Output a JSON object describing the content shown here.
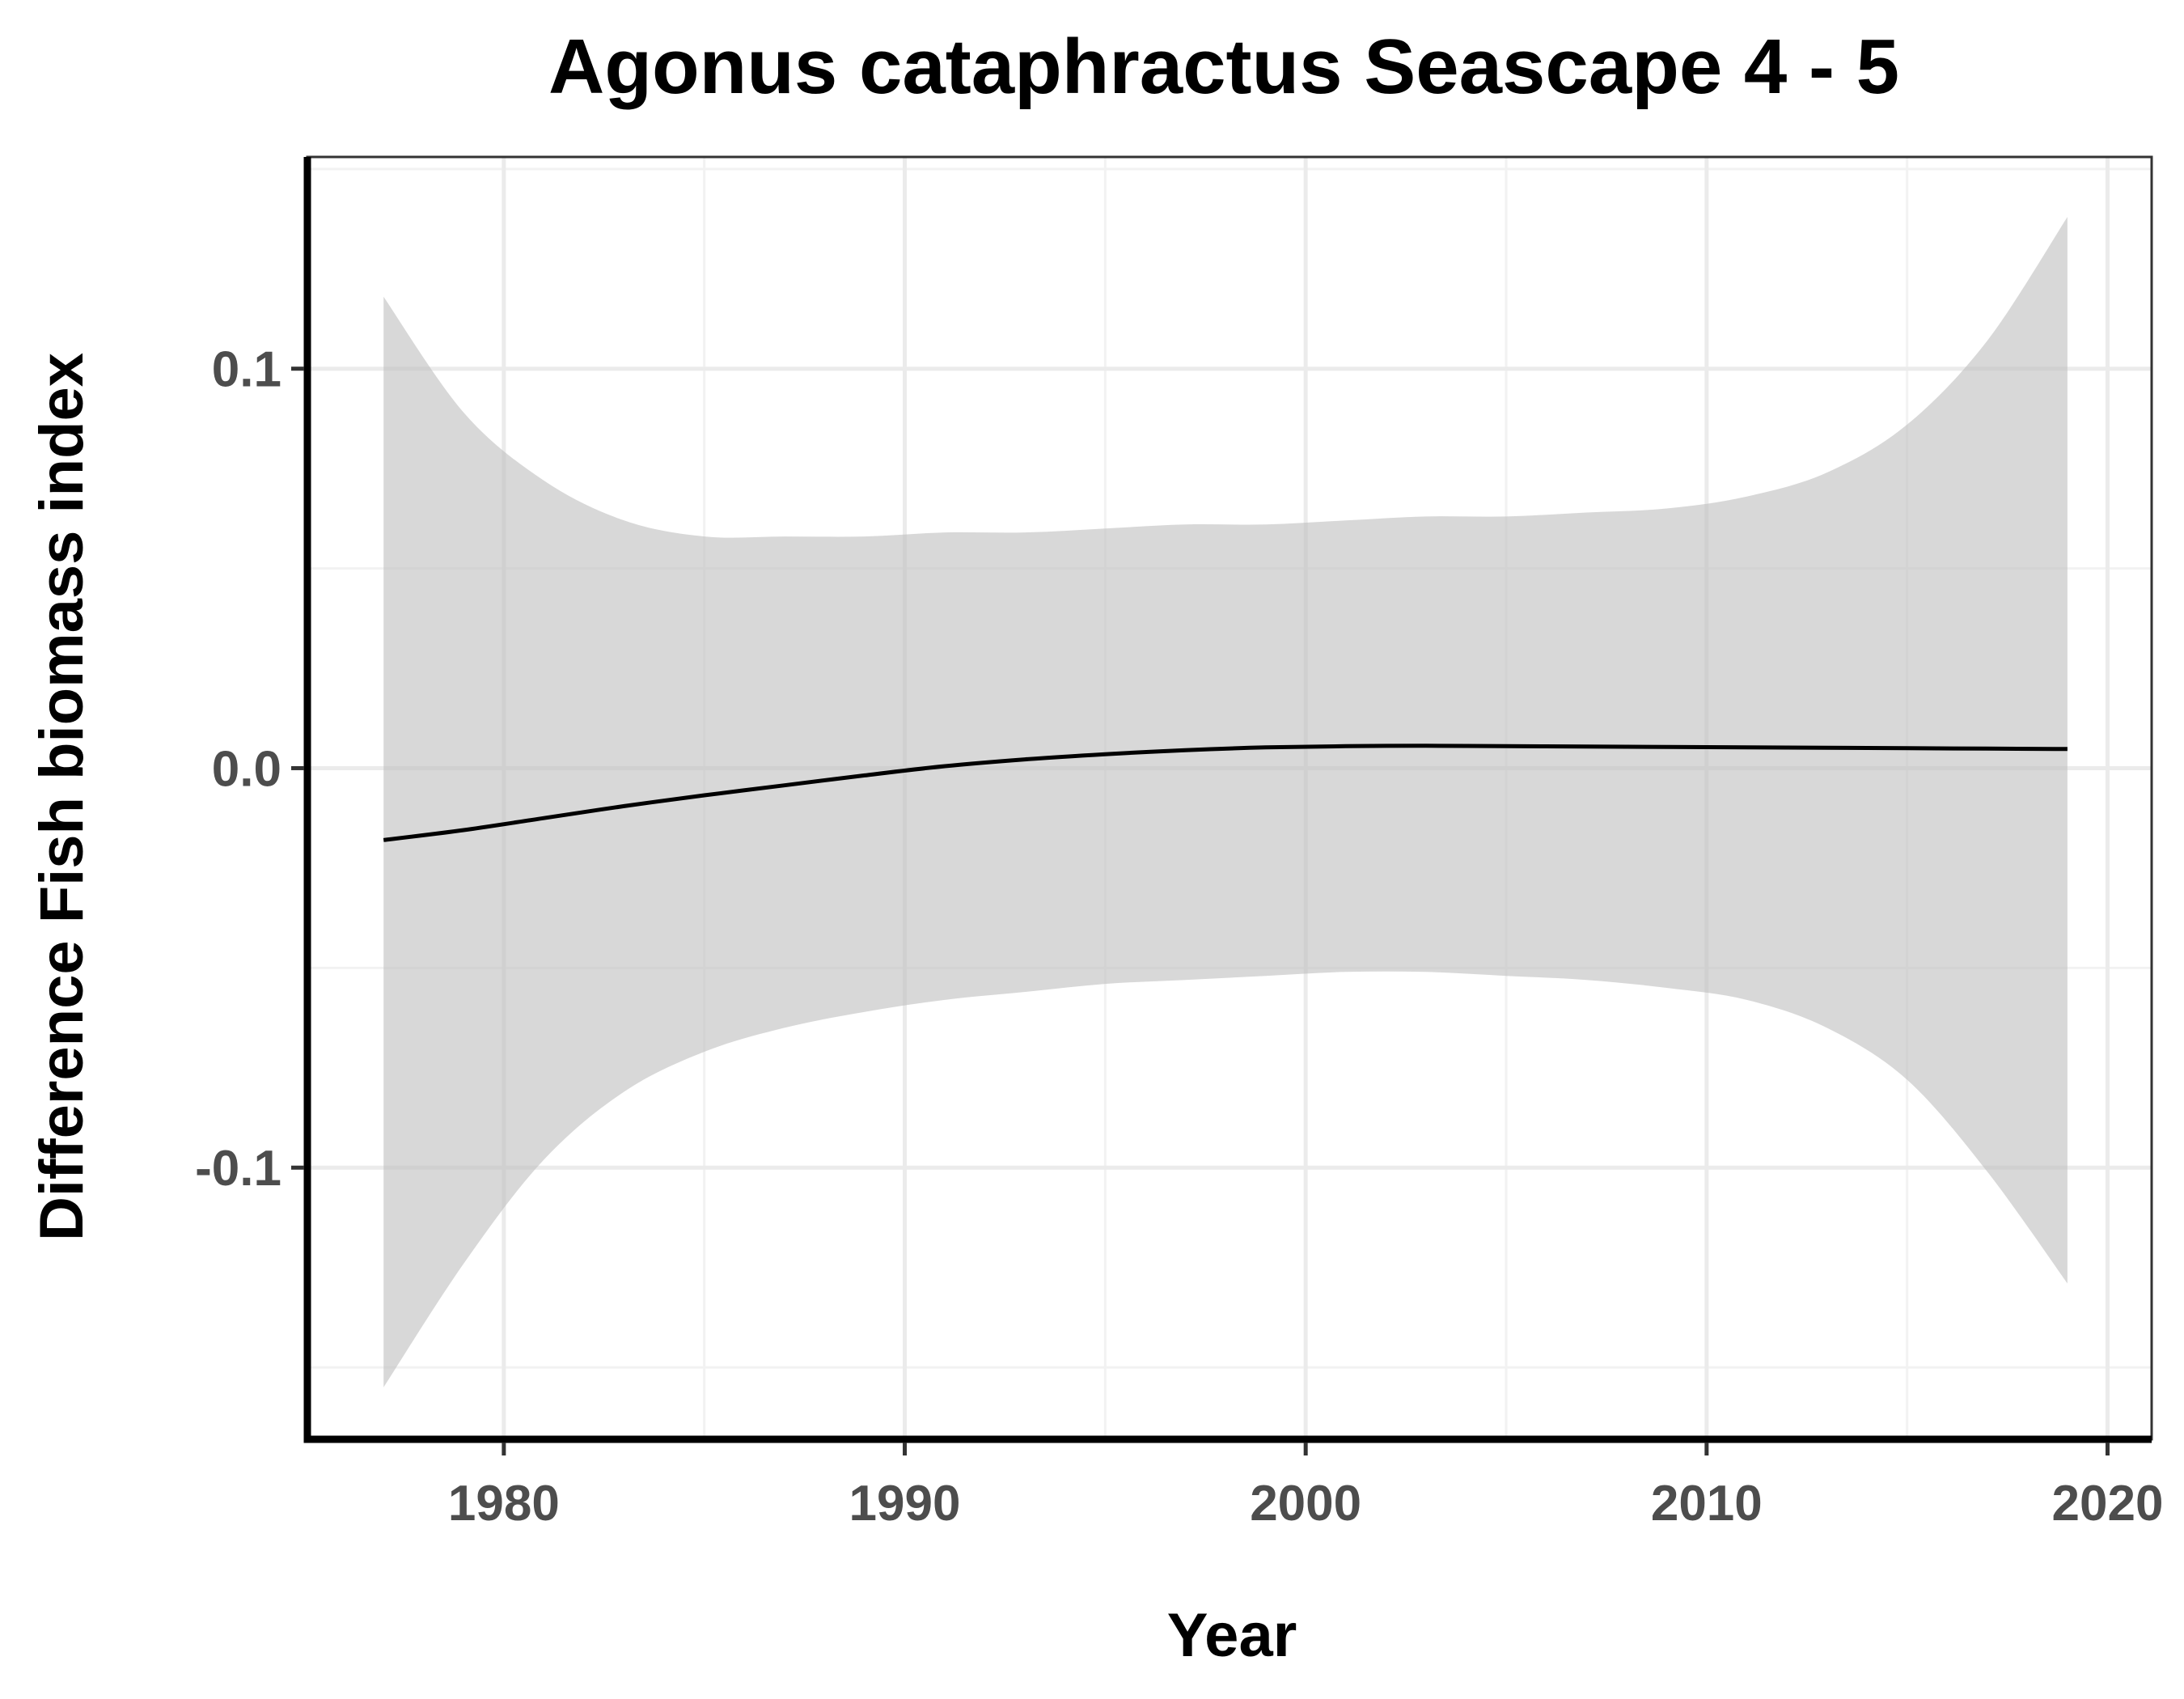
{
  "chart_data": {
    "type": "line",
    "title": "Agonus cataphractus Seascape 4 - 5",
    "xlabel": "Year",
    "ylabel": "Difference Fish biomass index",
    "xlim": [
      1975.1,
      2021.1
    ],
    "ylim": [
      -0.168,
      0.153
    ],
    "x_ticks": [
      1980,
      1990,
      2000,
      2010,
      2020
    ],
    "x_tick_labels": [
      "1980",
      "1990",
      "2000",
      "2010",
      "2020"
    ],
    "y_ticks": [
      -0.1,
      0.0,
      0.1
    ],
    "y_tick_labels": [
      "-0.1",
      "0.0",
      "0.1"
    ],
    "grid": true,
    "legend": "none",
    "colors": {
      "line": "#000000",
      "ribbon": "#bebebe"
    },
    "series": [
      {
        "x": [
          1977,
          1979,
          1981,
          1983,
          1985,
          1987,
          1989,
          1991,
          1993,
          1995,
          1997,
          1999,
          2001,
          2003,
          2005,
          2007,
          2009,
          2011,
          2013,
          2015,
          2017,
          2019
        ],
        "y": [
          -0.018,
          -0.0155,
          -0.0125,
          -0.0095,
          -0.0068,
          -0.0043,
          -0.0018,
          0.0005,
          0.0022,
          0.0035,
          0.0045,
          0.0052,
          0.0055,
          0.0056,
          0.0055,
          0.0054,
          0.0053,
          0.0052,
          0.0051,
          0.005,
          0.0049,
          0.0048
        ],
        "ymin": [
          -0.155,
          -0.124,
          -0.098,
          -0.081,
          -0.071,
          -0.065,
          -0.061,
          -0.058,
          -0.056,
          -0.054,
          -0.053,
          -0.052,
          -0.051,
          -0.051,
          -0.052,
          -0.053,
          -0.055,
          -0.058,
          -0.065,
          -0.078,
          -0.101,
          -0.129
        ],
        "ymax": [
          0.118,
          0.089,
          0.072,
          0.062,
          0.058,
          0.058,
          0.058,
          0.059,
          0.059,
          0.06,
          0.061,
          0.061,
          0.062,
          0.063,
          0.063,
          0.064,
          0.065,
          0.068,
          0.074,
          0.086,
          0.107,
          0.138
        ]
      }
    ]
  }
}
